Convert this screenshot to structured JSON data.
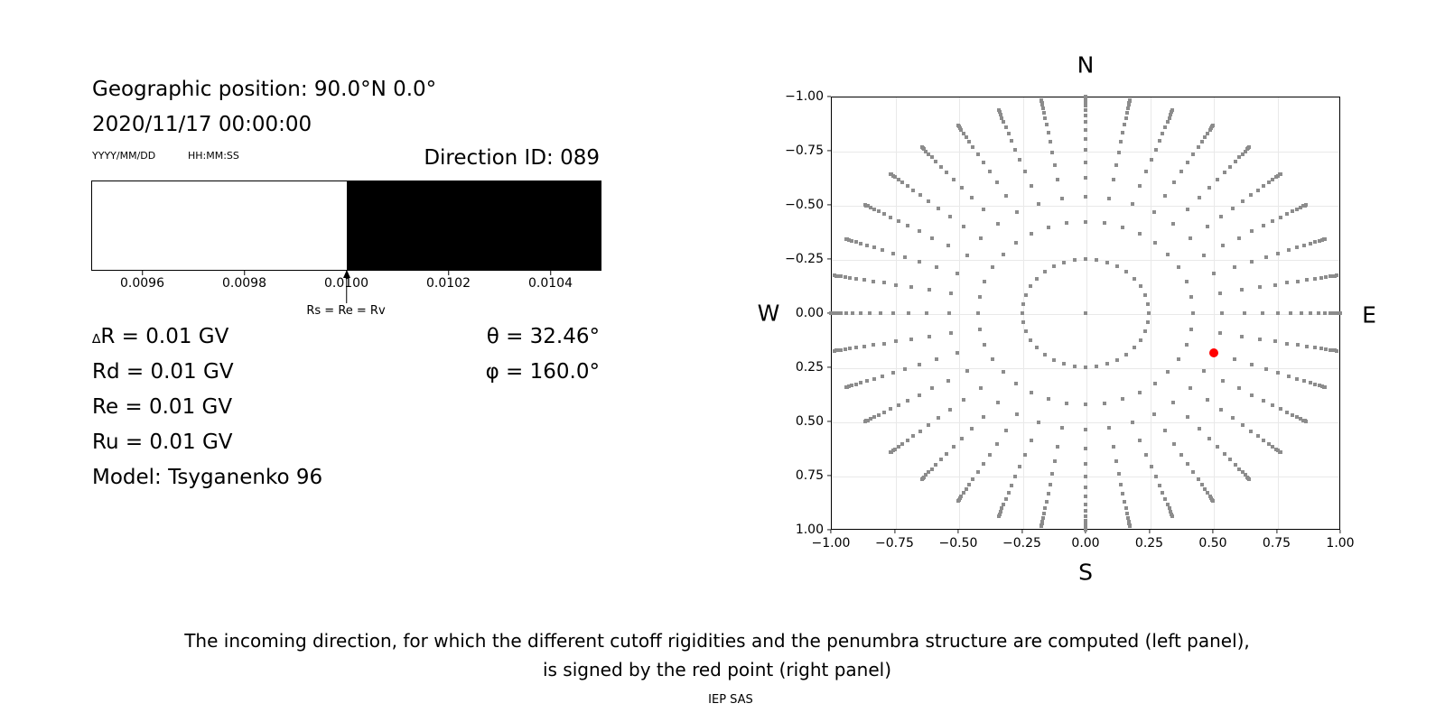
{
  "left_panel": {
    "geo_position": "Geographic position: 90.0°N 0.0°",
    "datetime": "2020/11/17 00:00:00",
    "date_format_label": "YYYY/MM/DD",
    "time_format_label": "HH:MM:SS",
    "direction_id": "Direction ID: 089",
    "penumbra": {
      "xmin": 0.0095,
      "xmax": 0.0105,
      "boundary_value": 0.01,
      "allowed_color": "#ffffff",
      "forbidden_color": "#000000",
      "tick_values": [
        0.0096,
        0.0098,
        0.01,
        0.0102,
        0.0104
      ],
      "tick_labels": [
        "0.0096",
        "0.0098",
        "0.0100",
        "0.0102",
        "0.0104"
      ],
      "arrow_label": "Rs = Re = Rv"
    },
    "rigidity_rows": [
      {
        "prefix": "∆",
        "label": "R = 0.01 GV"
      },
      {
        "prefix": "",
        "label": "Rd = 0.01 GV"
      },
      {
        "prefix": "",
        "label": "Re = 0.01 GV"
      },
      {
        "prefix": "",
        "label": "Ru = 0.01 GV"
      },
      {
        "prefix": "",
        "label": "Model: Tsyganenko 96"
      }
    ],
    "angles": {
      "theta": "θ = 32.46°",
      "phi": "φ = 160.0°"
    }
  },
  "chart_data": {
    "type": "scatter",
    "title": "N",
    "label_bottom": "S",
    "label_left": "W",
    "label_right": "E",
    "xlim": [
      -1,
      1
    ],
    "ylim": [
      -1,
      1
    ],
    "grid": true,
    "tick_values": [
      -1,
      -0.75,
      -0.5,
      -0.25,
      0,
      0.25,
      0.5,
      0.75,
      1
    ],
    "x_tick_labels": [
      "−1.00",
      "−0.75",
      "−0.50",
      "−0.25",
      "0.00",
      "0.25",
      "0.50",
      "0.75",
      "1.00"
    ],
    "y_tick_labels": [
      "1.00",
      "0.75",
      "0.50",
      "0.25",
      "0.00",
      "−0.25",
      "−0.50",
      "−0.75",
      "−1.00"
    ],
    "series": [
      {
        "name": "direction-grid",
        "marker": "square",
        "color": "#8c8c8c",
        "structure": "polar-grid",
        "center_dot": true,
        "azimuth_count": 36,
        "azimuth_step_deg": 10,
        "ring_radii": [
          0.248,
          0.4227,
          0.5367,
          0.6242,
          0.6953,
          0.7546,
          0.8047,
          0.8472,
          0.8833,
          0.9137,
          0.9391,
          0.9596,
          0.9758,
          0.9877,
          0.9956,
          0.9995
        ]
      },
      {
        "name": "selected-direction",
        "marker": "circle",
        "color": "#ff0000",
        "points": [
          {
            "x": 0.5043,
            "y": -0.1836
          }
        ],
        "direction_id": "089",
        "theta_deg": 32.46,
        "phi_deg": 160.0
      }
    ]
  },
  "caption": {
    "line1": "The incoming direction, for which the different cutoff rigidities and the penumbra structure are computed (left panel),",
    "line2": "is signed by the red point (right panel)",
    "credit": "IEP SAS"
  }
}
